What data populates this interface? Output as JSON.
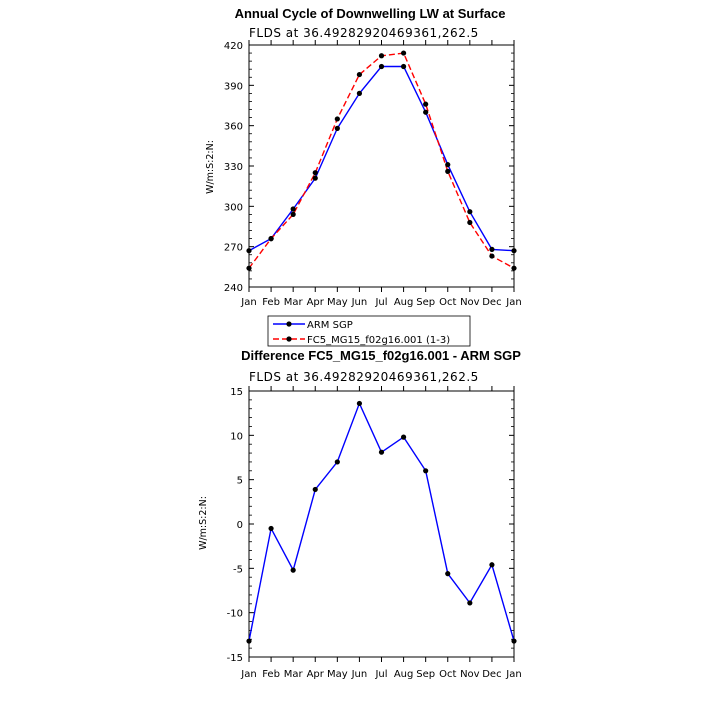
{
  "chart_data": [
    {
      "type": "line",
      "title": "Annual Cycle of Downwelling LW at Surface",
      "subtitle": "FLDS at 36.49282920469361,262.5",
      "ylabel": "W/m:S:2:N:",
      "xlabel": "",
      "categories": [
        "Jan",
        "Feb",
        "Mar",
        "Apr",
        "May",
        "Jun",
        "Jul",
        "Aug",
        "Sep",
        "Oct",
        "Nov",
        "Dec",
        "Jan"
      ],
      "ylim": [
        240,
        420
      ],
      "yticks": [
        240,
        270,
        300,
        330,
        360,
        390,
        420
      ],
      "series": [
        {
          "name": "ARM SGP",
          "color": "#0000ff",
          "dash": "solid",
          "values": [
            267,
            276,
            298,
            321,
            358,
            384,
            404,
            404,
            370,
            331,
            296,
            268,
            267
          ]
        },
        {
          "name": "FC5_MG15_f02g16.001 (1-3)",
          "color": "#ff0000",
          "dash": "dashed",
          "values": [
            254,
            276,
            294,
            325,
            365,
            398,
            412,
            414,
            376,
            326,
            288,
            263,
            254
          ]
        }
      ],
      "legend_position": "below"
    },
    {
      "type": "line",
      "title": "Difference FC5_MG15_f02g16.001 - ARM SGP",
      "subtitle": "FLDS at 36.49282920469361,262.5",
      "ylabel": "W/m:S:2:N:",
      "xlabel": "",
      "categories": [
        "Jan",
        "Feb",
        "Mar",
        "Apr",
        "May",
        "Jun",
        "Jul",
        "Aug",
        "Sep",
        "Oct",
        "Nov",
        "Dec",
        "Jan"
      ],
      "ylim": [
        -15,
        15
      ],
      "yticks": [
        -15,
        -10,
        -5,
        0,
        5,
        10,
        15
      ],
      "series": [
        {
          "color": "#0000ff",
          "dash": "solid",
          "values": [
            -13.2,
            -0.5,
            -5.2,
            3.9,
            7.0,
            13.6,
            8.1,
            9.8,
            6.0,
            -5.6,
            -8.9,
            -4.6,
            -13.2
          ]
        }
      ]
    }
  ]
}
